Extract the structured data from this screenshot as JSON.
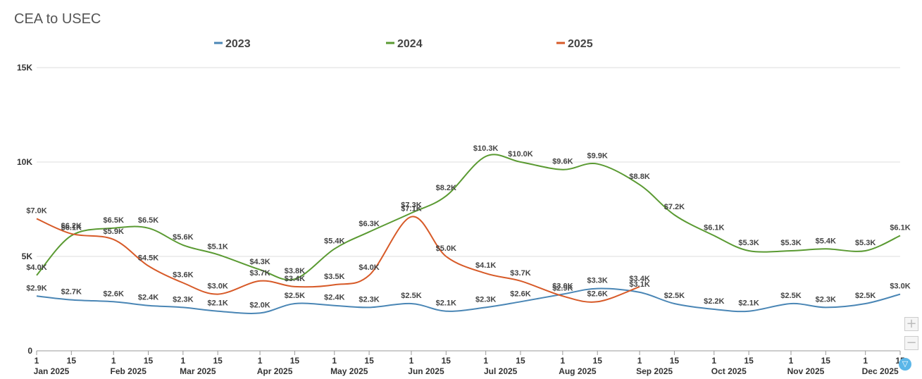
{
  "title": "CEA to USEC",
  "controls": {
    "zoom_in": "+",
    "zoom_out": "−",
    "filter": "▽"
  },
  "colors": {
    "2023": "#4a86b5",
    "2024": "#5a9a32",
    "2025": "#d75a28",
    "grid": "#dddddd",
    "axis": "#999999"
  },
  "chart_data": {
    "type": "line",
    "ylim": [
      0,
      15000
    ],
    "yticks": [
      {
        "value": 0,
        "label": "0"
      },
      {
        "value": 5000,
        "label": "5K"
      },
      {
        "value": 10000,
        "label": "10K"
      },
      {
        "value": 15000,
        "label": "15K"
      }
    ],
    "legend_position": "top-center",
    "grid": true,
    "x_ticks": [
      {
        "day": 0,
        "label": "1",
        "month": "Jan 2025"
      },
      {
        "day": 14,
        "label": "15"
      },
      {
        "day": 31,
        "label": "1",
        "month": "Feb 2025"
      },
      {
        "day": 45,
        "label": "15"
      },
      {
        "day": 59,
        "label": "1",
        "month": "Mar 2025"
      },
      {
        "day": 73,
        "label": "15"
      },
      {
        "day": 90,
        "label": "1",
        "month": "Apr 2025"
      },
      {
        "day": 104,
        "label": "15"
      },
      {
        "day": 120,
        "label": "1",
        "month": "May 2025"
      },
      {
        "day": 134,
        "label": "15"
      },
      {
        "day": 151,
        "label": "1",
        "month": "Jun 2025"
      },
      {
        "day": 165,
        "label": "15"
      },
      {
        "day": 181,
        "label": "1",
        "month": "Jul 2025"
      },
      {
        "day": 195,
        "label": "15"
      },
      {
        "day": 212,
        "label": "1",
        "month": "Aug 2025"
      },
      {
        "day": 226,
        "label": "15"
      },
      {
        "day": 243,
        "label": "1",
        "month": "Sep 2025"
      },
      {
        "day": 257,
        "label": "15"
      },
      {
        "day": 273,
        "label": "1",
        "month": "Oct 2025"
      },
      {
        "day": 287,
        "label": "15"
      },
      {
        "day": 304,
        "label": "1",
        "month": "Nov 2025"
      },
      {
        "day": 318,
        "label": "15"
      },
      {
        "day": 334,
        "label": "1",
        "month": "Dec 2025"
      },
      {
        "day": 348,
        "label": "15"
      }
    ],
    "x_range": [
      0,
      348
    ],
    "series": [
      {
        "name": "2023",
        "points": [
          {
            "day": 0,
            "value": 2900,
            "label": "$2.9K"
          },
          {
            "day": 14,
            "value": 2700,
            "label": "$2.7K"
          },
          {
            "day": 31,
            "value": 2600,
            "label": "$2.6K"
          },
          {
            "day": 45,
            "value": 2400,
            "label": "$2.4K"
          },
          {
            "day": 59,
            "value": 2300,
            "label": "$2.3K"
          },
          {
            "day": 73,
            "value": 2100,
            "label": "$2.1K"
          },
          {
            "day": 90,
            "value": 2000,
            "label": "$2.0K"
          },
          {
            "day": 104,
            "value": 2500,
            "label": "$2.5K"
          },
          {
            "day": 120,
            "value": 2400,
            "label": "$2.4K"
          },
          {
            "day": 134,
            "value": 2300,
            "label": "$2.3K"
          },
          {
            "day": 151,
            "value": 2500,
            "label": "$2.5K"
          },
          {
            "day": 165,
            "value": 2100,
            "label": "$2.1K"
          },
          {
            "day": 181,
            "value": 2300,
            "label": "$2.3K"
          },
          {
            "day": 195,
            "value": 2600,
            "label": "$2.6K"
          },
          {
            "day": 212,
            "value": 3000,
            "label": "$3.0K"
          },
          {
            "day": 226,
            "value": 3300,
            "label": "$3.3K"
          },
          {
            "day": 243,
            "value": 3100,
            "label": "$3.1K"
          },
          {
            "day": 257,
            "value": 2500,
            "label": "$2.5K"
          },
          {
            "day": 273,
            "value": 2200,
            "label": "$2.2K"
          },
          {
            "day": 287,
            "value": 2100,
            "label": "$2.1K"
          },
          {
            "day": 304,
            "value": 2500,
            "label": "$2.5K"
          },
          {
            "day": 318,
            "value": 2300,
            "label": "$2.3K"
          },
          {
            "day": 334,
            "value": 2500,
            "label": "$2.5K"
          },
          {
            "day": 348,
            "value": 3000,
            "label": "$3.0K"
          }
        ]
      },
      {
        "name": "2024",
        "points": [
          {
            "day": 0,
            "value": 4000,
            "label": "$4.0K"
          },
          {
            "day": 14,
            "value": 6100,
            "label": "$6.1K"
          },
          {
            "day": 31,
            "value": 6500,
            "label": "$6.5K"
          },
          {
            "day": 45,
            "value": 6500,
            "label": "$6.5K"
          },
          {
            "day": 59,
            "value": 5600,
            "label": "$5.6K"
          },
          {
            "day": 73,
            "value": 5100,
            "label": "$5.1K"
          },
          {
            "day": 90,
            "value": 4300,
            "label": "$4.3K"
          },
          {
            "day": 104,
            "value": 3800,
            "label": "$3.8K"
          },
          {
            "day": 120,
            "value": 5400,
            "label": "$5.4K"
          },
          {
            "day": 134,
            "value": 6300,
            "label": "$6.3K"
          },
          {
            "day": 151,
            "value": 7300,
            "label": "$7.3K"
          },
          {
            "day": 165,
            "value": 8200,
            "label": "$8.2K"
          },
          {
            "day": 181,
            "value": 10300,
            "label": "$10.3K"
          },
          {
            "day": 195,
            "value": 10000,
            "label": "$10.0K"
          },
          {
            "day": 212,
            "value": 9600,
            "label": "$9.6K"
          },
          {
            "day": 226,
            "value": 9900,
            "label": "$9.9K"
          },
          {
            "day": 243,
            "value": 8800,
            "label": "$8.8K"
          },
          {
            "day": 257,
            "value": 7200,
            "label": "$7.2K"
          },
          {
            "day": 273,
            "value": 6100,
            "label": "$6.1K"
          },
          {
            "day": 287,
            "value": 5300,
            "label": "$5.3K"
          },
          {
            "day": 304,
            "value": 5300,
            "label": "$5.3K"
          },
          {
            "day": 318,
            "value": 5400,
            "label": "$5.4K"
          },
          {
            "day": 334,
            "value": 5300,
            "label": "$5.3K"
          },
          {
            "day": 348,
            "value": 6100,
            "label": "$6.1K"
          }
        ]
      },
      {
        "name": "2025",
        "points": [
          {
            "day": 0,
            "value": 7000,
            "label": "$7.0K"
          },
          {
            "day": 14,
            "value": 6200,
            "label": "$6.2K"
          },
          {
            "day": 31,
            "value": 5900,
            "label": "$5.9K"
          },
          {
            "day": 45,
            "value": 4500,
            "label": "$4.5K"
          },
          {
            "day": 59,
            "value": 3600,
            "label": "$3.6K"
          },
          {
            "day": 73,
            "value": 3000,
            "label": "$3.0K"
          },
          {
            "day": 90,
            "value": 3700,
            "label": "$3.7K"
          },
          {
            "day": 104,
            "value": 3400,
            "label": "$3.4K"
          },
          {
            "day": 120,
            "value": 3500,
            "label": "$3.5K"
          },
          {
            "day": 134,
            "value": 4000,
            "label": "$4.0K"
          },
          {
            "day": 151,
            "value": 7100,
            "label": "$7.1K"
          },
          {
            "day": 165,
            "value": 5000,
            "label": "$5.0K"
          },
          {
            "day": 181,
            "value": 4100,
            "label": "$4.1K"
          },
          {
            "day": 195,
            "value": 3700,
            "label": "$3.7K"
          },
          {
            "day": 212,
            "value": 2900,
            "label": "$2.9K"
          },
          {
            "day": 226,
            "value": 2600,
            "label": "$2.6K"
          },
          {
            "day": 243,
            "value": 3400,
            "label": "$3.4K"
          }
        ]
      }
    ]
  }
}
